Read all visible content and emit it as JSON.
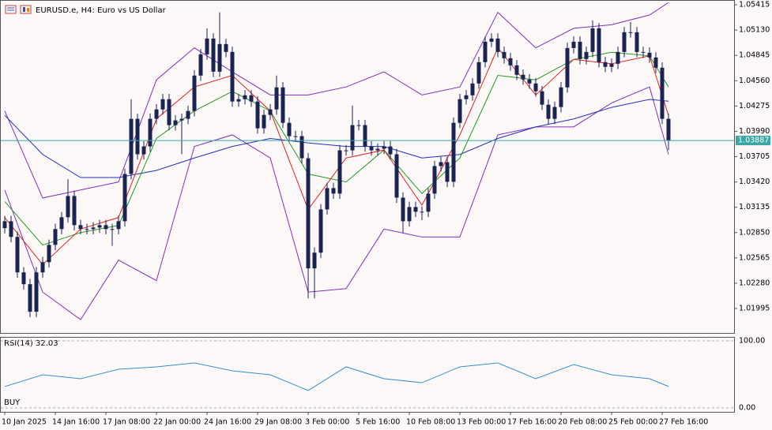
{
  "chart_data": [
    {
      "type": "candlestick",
      "title": "EURUSD.e, H4:  Euro vs US Dollar",
      "categories": [
        "10 Jan 2025",
        null,
        null,
        null,
        null,
        null,
        null,
        null,
        "14 Jan 16:00",
        null,
        null,
        null,
        null,
        null,
        null,
        null,
        "17 Jan 08:00",
        null,
        null,
        null,
        null,
        null,
        null,
        null,
        "22 Jan 00:00",
        null,
        null,
        null,
        null,
        null,
        null,
        null,
        "24 Jan 16:00",
        null,
        null,
        null,
        null,
        null,
        null,
        null,
        "29 Jan 08:00",
        null,
        null,
        null,
        null,
        null,
        null,
        null,
        "3 Feb 00:00",
        null,
        null,
        null,
        null,
        null,
        null,
        null,
        "5 Feb 16:00",
        null,
        null,
        null,
        null,
        null,
        null,
        null,
        "10 Feb 08:00",
        null,
        null,
        null,
        null,
        null,
        null,
        null,
        "13 Feb 00:00",
        null,
        null,
        null,
        null,
        null,
        null,
        null,
        "17 Feb 16:00",
        null,
        null,
        null,
        null,
        null,
        null,
        null,
        "20 Feb 08:00",
        null,
        null,
        null,
        null,
        null,
        null,
        null,
        "25 Feb 00:00",
        null,
        null,
        null,
        null,
        null,
        null,
        null,
        "27 Feb 16:00",
        null
      ],
      "open": [
        1.029,
        1.02978,
        1.02801,
        1.02402,
        1.02269,
        1.01959,
        1.02402,
        1.02517,
        1.02712,
        1.0289,
        1.03023,
        1.03262,
        1.02934,
        1.0289,
        1.0289,
        1.02907,
        1.02934,
        1.0289,
        1.0289,
        1.02978,
        1.0351,
        1.04131,
        1.03732,
        1.0382,
        1.04131,
        1.04237,
        1.04352,
        1.0406,
        1.04113,
        1.04131,
        1.04219,
        1.04618,
        1.04857,
        1.05035,
        1.04662,
        1.04973,
        1.04884,
        1.04326,
        1.04352,
        1.04396,
        1.04326,
        1.04024,
        1.04175,
        1.04237,
        1.04485,
        1.04086,
        1.03936,
        1.03936,
        1.03687,
        1.02447,
        1.02624,
        1.03111,
        1.03351,
        1.03289,
        1.03776,
        1.03776,
        1.0406,
        1.0406,
        1.0382,
        1.03776,
        1.03794,
        1.0382,
        1.03732,
        1.03244,
        1.02978,
        1.03138,
        1.03085,
        1.03085,
        1.03289,
        1.03599,
        1.03643,
        1.03422,
        1.04086,
        1.04352,
        1.04396,
        1.04529,
        1.04769,
        1.04999,
        1.05035,
        1.04884,
        1.04813,
        1.04733,
        1.04627,
        1.04574,
        1.04529,
        1.04441,
        1.0429,
        1.04131,
        1.04264,
        1.04485,
        1.04928,
        1.04999,
        1.04804,
        1.04884,
        1.0515,
        1.04769,
        1.04716,
        1.04751,
        1.04884,
        1.05106,
        1.05106,
        1.04884,
        1.04875,
        1.04822,
        1.04707,
        1.04131
      ],
      "high": [
        1.03038,
        1.03038,
        1.02861,
        1.02462,
        1.02329,
        1.02462,
        1.02577,
        1.02772,
        1.0295,
        1.03083,
        1.0345,
        1.03322,
        1.02994,
        1.0295,
        1.02967,
        1.02994,
        1.02994,
        1.0295,
        1.03038,
        1.0357,
        1.04352,
        1.04191,
        1.0388,
        1.04191,
        1.04297,
        1.04412,
        1.04412,
        1.04173,
        1.04191,
        1.04279,
        1.04678,
        1.04917,
        1.0515,
        1.05095,
        1.0533,
        1.05033,
        1.04944,
        1.04412,
        1.04456,
        1.04456,
        1.04386,
        1.04235,
        1.04297,
        1.04618,
        1.04545,
        1.04146,
        1.03996,
        1.03996,
        1.03747,
        1.02684,
        1.03171,
        1.03411,
        1.03411,
        1.03836,
        1.03836,
        1.04281,
        1.0412,
        1.0412,
        1.0388,
        1.03854,
        1.0388,
        1.0388,
        1.03792,
        1.03304,
        1.03198,
        1.03198,
        1.03145,
        1.03349,
        1.03659,
        1.03703,
        1.03703,
        1.04146,
        1.04412,
        1.04456,
        1.04589,
        1.04829,
        1.05059,
        1.05095,
        1.05095,
        1.04944,
        1.04873,
        1.04793,
        1.04687,
        1.04634,
        1.04589,
        1.04501,
        1.0435,
        1.04324,
        1.04545,
        1.04988,
        1.05059,
        1.05059,
        1.04944,
        1.0524,
        1.0521,
        1.04829,
        1.04811,
        1.04944,
        1.05166,
        1.0522,
        1.05166,
        1.04944,
        1.04935,
        1.04882,
        1.04767,
        1.04191
      ],
      "low": [
        1.0284,
        1.02741,
        1.02342,
        1.02209,
        1.01899,
        1.01899,
        1.02342,
        1.02457,
        1.02652,
        1.0283,
        1.02963,
        1.02874,
        1.0283,
        1.0283,
        1.0283,
        1.02847,
        1.0283,
        1.027,
        1.0283,
        1.02918,
        1.0345,
        1.03672,
        1.03672,
        1.0376,
        1.04071,
        1.04177,
        1.04,
        1.04,
        1.03732,
        1.04071,
        1.04159,
        1.04558,
        1.04797,
        1.04602,
        1.04602,
        1.04824,
        1.04266,
        1.04266,
        1.04292,
        1.04266,
        1.03964,
        1.03964,
        1.04115,
        1.04177,
        1.04026,
        1.03876,
        1.03876,
        1.03627,
        1.0211,
        1.0211,
        1.02564,
        1.03051,
        1.03229,
        1.03229,
        1.03716,
        1.03716,
        1.04,
        1.0376,
        1.03716,
        1.03716,
        1.03734,
        1.03672,
        1.03184,
        1.0285,
        1.02918,
        1.03025,
        1.0299,
        1.03025,
        1.03229,
        1.03539,
        1.03362,
        1.03362,
        1.04026,
        1.04292,
        1.04336,
        1.04469,
        1.04709,
        1.04939,
        1.04824,
        1.04753,
        1.04673,
        1.04567,
        1.04514,
        1.04469,
        1.04381,
        1.0423,
        1.04071,
        1.04071,
        1.04204,
        1.04425,
        1.04868,
        1.04744,
        1.04744,
        1.04824,
        1.04709,
        1.04656,
        1.04656,
        1.04691,
        1.04824,
        1.05046,
        1.04824,
        1.04815,
        1.04762,
        1.04647,
        1.04071,
        1.0378
      ],
      "close": [
        1.02978,
        1.02801,
        1.02402,
        1.02269,
        1.01959,
        1.02402,
        1.02517,
        1.02712,
        1.0289,
        1.03023,
        1.03262,
        1.02934,
        1.0289,
        1.0289,
        1.02907,
        1.02934,
        1.0289,
        1.0289,
        1.02978,
        1.0351,
        1.04131,
        1.03732,
        1.0382,
        1.04131,
        1.04237,
        1.04352,
        1.0406,
        1.04113,
        1.04131,
        1.04219,
        1.04618,
        1.04857,
        1.05035,
        1.04662,
        1.04973,
        1.04884,
        1.04326,
        1.04352,
        1.04396,
        1.04326,
        1.04024,
        1.04175,
        1.04237,
        1.04485,
        1.04086,
        1.03936,
        1.03936,
        1.03687,
        1.02447,
        1.02624,
        1.03111,
        1.03351,
        1.03289,
        1.03776,
        1.03776,
        1.0406,
        1.0406,
        1.0382,
        1.03776,
        1.03794,
        1.0382,
        1.03732,
        1.03244,
        1.02978,
        1.03138,
        1.03085,
        1.03085,
        1.03289,
        1.03599,
        1.03643,
        1.03422,
        1.04086,
        1.04352,
        1.04396,
        1.04529,
        1.04769,
        1.04999,
        1.05035,
        1.04884,
        1.04813,
        1.04733,
        1.04627,
        1.04574,
        1.04529,
        1.04441,
        1.0429,
        1.04131,
        1.04264,
        1.04485,
        1.04928,
        1.04999,
        1.04804,
        1.04884,
        1.0515,
        1.04769,
        1.04716,
        1.04751,
        1.04884,
        1.05106,
        1.05106,
        1.04884,
        1.04875,
        1.04822,
        1.04707,
        1.04131,
        1.03887
      ],
      "color": "#1b2352",
      "ylim": [
        1.0172,
        1.0546
      ],
      "yticks": [
        1.05415,
        {
          "value": 1.0513,
          "label": "1.05130"
        },
        1.04845,
        {
          "value": 1.0456,
          "label": "1.04560"
        },
        1.04275,
        {
          "value": 1.0399,
          "label": "1.03990"
        },
        1.03705,
        {
          "value": 1.0342,
          "label": "1.03420"
        },
        1.03135,
        {
          "value": 1.0285,
          "label": "1.02850"
        },
        1.02565,
        {
          "value": 1.0228,
          "label": "1.02280"
        },
        1.01995
      ],
      "last_price": 1.03887,
      "last_price_color": "#3aa6a6",
      "lines": [
        {
          "color": "#7d2fbf",
          "x": [
            0,
            6,
            12,
            18,
            24,
            30,
            36,
            42,
            48,
            54,
            60,
            66,
            72,
            78,
            84,
            90,
            96,
            102,
            105
          ],
          "values": [
            1.0422,
            1.0324,
            1.0333,
            1.0342,
            1.0457,
            1.0493,
            1.0466,
            1.044,
            1.044,
            1.0449,
            1.0466,
            1.044,
            1.0449,
            1.0533,
            1.0493,
            1.0515,
            1.0519,
            1.053,
            1.0544
          ]
        },
        {
          "color": "#7d2fbf",
          "x": [
            0,
            6,
            12,
            18,
            24,
            30,
            36,
            42,
            48,
            54,
            60,
            66,
            72,
            78,
            84,
            90,
            96,
            102,
            105
          ],
          "values": [
            1.0333,
            1.0218,
            1.0187,
            1.0254,
            1.0231,
            1.0382,
            1.0395,
            1.0369,
            1.0218,
            1.0222,
            1.0289,
            1.028,
            1.028,
            1.0395,
            1.0404,
            1.0404,
            1.0431,
            1.0449,
            1.0373
          ]
        },
        {
          "color": "#1f2fb8",
          "x": [
            0,
            6,
            12,
            18,
            24,
            30,
            36,
            42,
            48,
            54,
            60,
            66,
            72,
            78,
            84,
            90,
            96,
            102,
            105
          ],
          "values": [
            1.0417,
            1.0373,
            1.0347,
            1.0347,
            1.0355,
            1.0369,
            1.0382,
            1.0391,
            1.0386,
            1.0382,
            1.0382,
            1.0369,
            1.0373,
            1.0391,
            1.0404,
            1.0413,
            1.0426,
            1.0435,
            1.0433
          ]
        },
        {
          "color": "#1e9a1e",
          "x": [
            0,
            6,
            12,
            18,
            24,
            30,
            36,
            42,
            48,
            54,
            60,
            66,
            72,
            78,
            84,
            90,
            96,
            102,
            105
          ],
          "values": [
            1.032,
            1.0271,
            1.0285,
            1.0293,
            1.0391,
            1.0422,
            1.0444,
            1.0422,
            1.0351,
            1.0342,
            1.0378,
            1.0329,
            1.0369,
            1.0462,
            1.0457,
            1.048,
            1.0488,
            1.0484,
            1.0449
          ]
        },
        {
          "color": "#e0201c",
          "x": [
            0,
            6,
            12,
            18,
            24,
            30,
            36,
            42,
            48,
            54,
            60,
            66,
            72,
            78,
            84,
            90,
            96,
            102,
            105
          ],
          "values": [
            1.0302,
            1.0249,
            1.0289,
            1.0302,
            1.0413,
            1.0449,
            1.0462,
            1.0422,
            1.0311,
            1.0369,
            1.0378,
            1.0316,
            1.0395,
            1.0493,
            1.044,
            1.048,
            1.0475,
            1.0484,
            1.0417
          ]
        }
      ]
    },
    {
      "type": "line",
      "title": "RSI(14) 32.03",
      "signal": "BUY",
      "x": [
        0,
        6,
        12,
        18,
        24,
        30,
        36,
        42,
        48,
        54,
        60,
        66,
        72,
        78,
        84,
        90,
        96,
        102,
        105
      ],
      "values": [
        31.8,
        49.4,
        43.5,
        57.6,
        61.2,
        67.1,
        55.3,
        49.4,
        25.9,
        61.2,
        43.5,
        37.6,
        61.2,
        67.1,
        43.5,
        64.7,
        49.4,
        43.5,
        32.03
      ],
      "color": "#2f8fd0",
      "ylim": [
        -5.9,
        104.7
      ],
      "yticks": [
        {
          "value": 100,
          "label": "100.00"
        },
        {
          "value": 0,
          "label": "0.00"
        }
      ]
    }
  ]
}
